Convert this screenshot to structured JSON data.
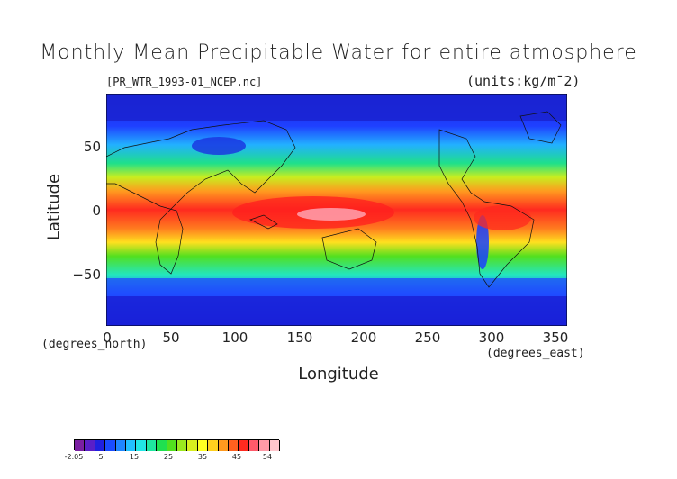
{
  "title": "Monthly Mean Precipitable Water for entire atmosphere",
  "file_label": "[PR_WTR_1993-01_NCEP.nc]",
  "units_label": "(units:kg/m¯2)",
  "axes": {
    "y_label": "Latitude",
    "x_label": "Longitude",
    "y_note": "(degrees_north)",
    "x_note": "(degrees_east)",
    "y_ticks": [
      "50",
      "0",
      "−50"
    ],
    "x_ticks": [
      "0",
      "50",
      "100",
      "150",
      "200",
      "250",
      "300",
      "350"
    ]
  },
  "colorbar": {
    "labels": [
      "-2.05",
      "5",
      "15",
      "25",
      "35",
      "45",
      "54"
    ],
    "colors": [
      "#7a1fa2",
      "#5a1fc8",
      "#2020e0",
      "#1a4cff",
      "#1f86ff",
      "#22c0ff",
      "#22e6e6",
      "#1fe6a0",
      "#1fe050",
      "#52e01f",
      "#9be81f",
      "#d8ee1f",
      "#ffff22",
      "#ffd01f",
      "#ff9a1f",
      "#ff601f",
      "#ff2a1f",
      "#ff5a6a",
      "#ff9aa6",
      "#ffc6cc"
    ]
  },
  "chart_data": {
    "type": "heatmap",
    "title": "Monthly Mean Precipitable Water for entire atmosphere",
    "xlabel": "Longitude",
    "ylabel": "Latitude",
    "xlim": [
      0,
      360
    ],
    "ylim": [
      -90,
      90
    ],
    "x_ticks": [
      0,
      50,
      100,
      150,
      200,
      250,
      300,
      350
    ],
    "y_ticks": [
      50,
      0,
      -50
    ],
    "value_range": [
      -2.05,
      54
    ],
    "units": "kg/m¯2"
  }
}
